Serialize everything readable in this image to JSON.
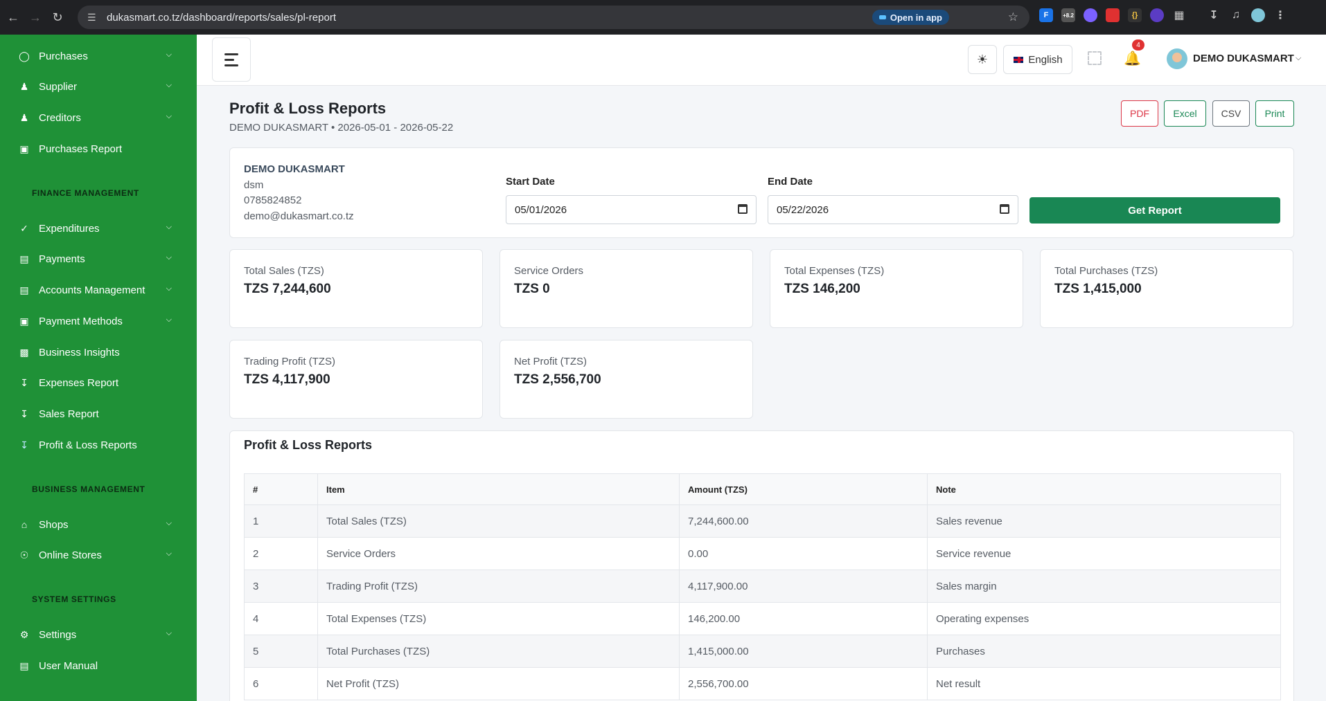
{
  "browser": {
    "url": "dukasmart.co.tz/dashboard/reports/sales/pl-report",
    "open_in_app": "Open in app",
    "extension_badge": "+8.2"
  },
  "sidebar": {
    "items_top": [
      {
        "label": "Purchases",
        "icon": "purchases-icon",
        "has_children": true
      },
      {
        "label": "Supplier",
        "icon": "person-icon",
        "has_children": true
      },
      {
        "label": "Creditors",
        "icon": "people-icon",
        "has_children": true
      },
      {
        "label": "Purchases Report",
        "icon": "calendar-icon",
        "has_children": false
      }
    ],
    "section_finance": "FINANCE MANAGEMENT",
    "items_finance": [
      {
        "label": "Expenditures",
        "icon": "check-circle-icon",
        "has_children": true
      },
      {
        "label": "Payments",
        "icon": "card-icon",
        "has_children": true
      },
      {
        "label": "Accounts Management",
        "icon": "ledger-icon",
        "has_children": true
      },
      {
        "label": "Payment Methods",
        "icon": "wallet-icon",
        "has_children": true
      },
      {
        "label": "Business Insights",
        "icon": "bar-chart-icon",
        "has_children": false
      },
      {
        "label": "Expenses Report",
        "icon": "download-icon",
        "has_children": false
      },
      {
        "label": "Sales Report",
        "icon": "download-icon",
        "has_children": false
      },
      {
        "label": "Profit & Loss Reports",
        "icon": "download-icon",
        "has_children": false,
        "active": true
      }
    ],
    "section_business": "BUSINESS MANAGEMENT",
    "items_business": [
      {
        "label": "Shops",
        "icon": "store-icon",
        "has_children": true
      },
      {
        "label": "Online Stores",
        "icon": "globe-icon",
        "has_children": true
      }
    ],
    "section_system": "SYSTEM SETTINGS",
    "items_system": [
      {
        "label": "Settings",
        "icon": "gear-icon",
        "has_children": true
      },
      {
        "label": "User Manual",
        "icon": "book-icon",
        "has_children": false
      }
    ]
  },
  "header": {
    "language": "English",
    "notification_count": "4",
    "user_name": "DEMO DUKASMART"
  },
  "page": {
    "title": "Profit & Loss Reports",
    "subtitle": "DEMO DUKASMART • 2026-05-01 - 2026-05-22",
    "export": {
      "pdf": "PDF",
      "excel": "Excel",
      "csv": "CSV",
      "print": "Print"
    }
  },
  "business": {
    "name": "DEMO DUKASMART",
    "code": "dsm",
    "phone": "0785824852",
    "email": "demo@dukasmart.co.tz"
  },
  "filters": {
    "start_label": "Start Date",
    "start_value": "05/01/2026",
    "end_label": "End Date",
    "end_value": "05/22/2026",
    "submit": "Get Report"
  },
  "stats": [
    {
      "label": "Total Sales (TZS)",
      "value": "TZS 7,244,600"
    },
    {
      "label": "Service Orders",
      "value": "TZS 0"
    },
    {
      "label": "Total Expenses (TZS)",
      "value": "TZS 146,200"
    },
    {
      "label": "Total Purchases (TZS)",
      "value": "TZS 1,415,000"
    },
    {
      "label": "Trading Profit (TZS)",
      "value": "TZS 4,117,900"
    },
    {
      "label": "Net Profit (TZS)",
      "value": "TZS 2,556,700"
    }
  ],
  "table": {
    "title": "Profit & Loss Reports",
    "columns": [
      "#",
      "Item",
      "Amount (TZS)",
      "Note"
    ],
    "rows": [
      [
        "1",
        "Total Sales (TZS)",
        "7,244,600.00",
        "Sales revenue"
      ],
      [
        "2",
        "Service Orders",
        "0.00",
        "Service revenue"
      ],
      [
        "3",
        "Trading Profit (TZS)",
        "4,117,900.00",
        "Sales margin"
      ],
      [
        "4",
        "Total Expenses (TZS)",
        "146,200.00",
        "Operating expenses"
      ],
      [
        "5",
        "Total Purchases (TZS)",
        "1,415,000.00",
        "Purchases"
      ],
      [
        "6",
        "Net Profit (TZS)",
        "2,556,700.00",
        "Net result"
      ]
    ]
  }
}
